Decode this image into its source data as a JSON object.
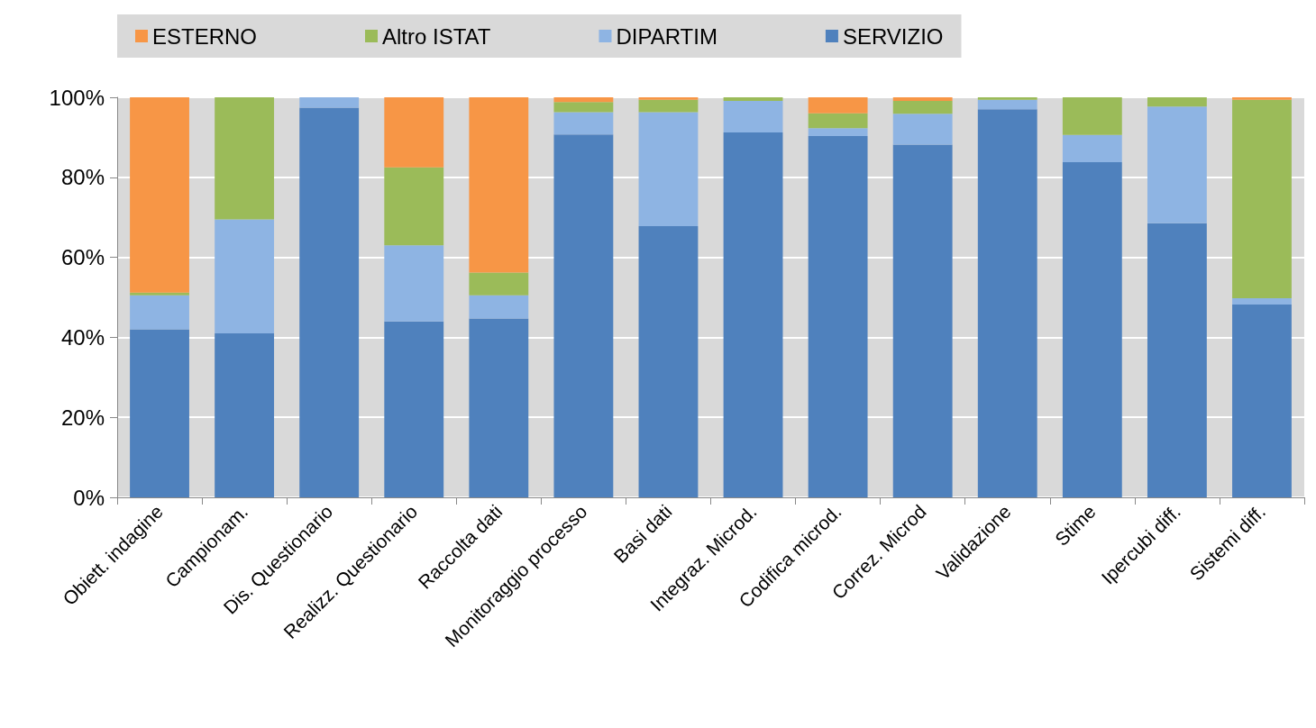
{
  "chart_data": {
    "type": "bar",
    "stacked": true,
    "categories": [
      "Obiett. indagine",
      "Campionam.",
      "Dis. Questionario",
      "Realizz. Questionario",
      "Raccolta dati",
      "Monitoraggio processo",
      "Basi dati",
      "Integraz. Microd.",
      "Codifica microd.",
      "Correz. Microd",
      "Validazione",
      "Stime",
      "Ipercubi diff.",
      "Sistemi diff."
    ],
    "series": [
      {
        "name": "SERVIZIO",
        "color": "#4f81bd",
        "values": [
          42,
          41,
          97.4,
          44,
          44.7,
          90.7,
          67.8,
          91.2,
          90.3,
          88.2,
          97,
          83.8,
          68.5,
          48.2
        ]
      },
      {
        "name": "DIPARTIM",
        "color": "#8eb4e3",
        "values": [
          8.5,
          28.5,
          2.6,
          19,
          5.8,
          5.6,
          28.5,
          7.9,
          2,
          7.7,
          2.4,
          6.8,
          29.2,
          1.6
        ]
      },
      {
        "name": "Altro ISTAT",
        "color": "#9bbb59",
        "values": [
          0.7,
          30.5,
          0,
          19.5,
          5.7,
          2.5,
          3.1,
          0.9,
          3.7,
          3.2,
          0.6,
          9.4,
          2.3,
          49.6
        ]
      },
      {
        "name": "ESTERNO",
        "color": "#f79646",
        "values": [
          48.8,
          0,
          0,
          17.5,
          43.8,
          1.2,
          0.6,
          0,
          4,
          0.9,
          0,
          0,
          0,
          0.6
        ]
      }
    ],
    "ylim": [
      0,
      100
    ],
    "yticks": [
      {
        "value": 0,
        "label": "0%"
      },
      {
        "value": 20,
        "label": "20%"
      },
      {
        "value": 40,
        "label": "40%"
      },
      {
        "value": 60,
        "label": "60%"
      },
      {
        "value": 80,
        "label": "80%"
      },
      {
        "value": 100,
        "label": "100%"
      }
    ],
    "grid": "y",
    "legend": "top"
  }
}
